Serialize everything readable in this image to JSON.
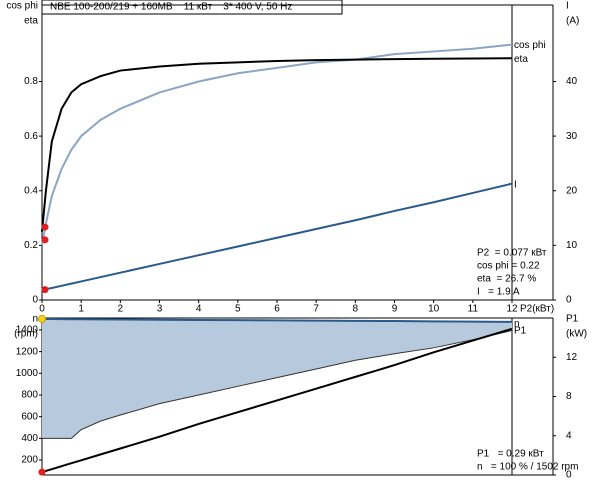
{
  "chart_data": [
    {
      "type": "line",
      "title": "NBE 100-200/219 + 160MB    11 кВт    3* 400 V, 50 Hz",
      "ylabel": [
        "cos phi",
        "eta"
      ],
      "y2label": [
        "I",
        "(A)"
      ],
      "xlabel": "P2(кВт)",
      "x": [
        0,
        0.1,
        0.25,
        0.5,
        0.75,
        1,
        1.5,
        2,
        3,
        4,
        5,
        6,
        7,
        8,
        9,
        10,
        11,
        12
      ],
      "xlim": [
        0,
        12
      ],
      "xticks": [
        0,
        1,
        2,
        3,
        4,
        5,
        6,
        7,
        8,
        9,
        10,
        11,
        12
      ],
      "ylim": [
        0,
        1.08
      ],
      "yticks": [
        0,
        0.2,
        0.4,
        0.6,
        0.8
      ],
      "y2lim": [
        0,
        54
      ],
      "y2ticks": [
        0,
        10,
        20,
        30,
        40
      ],
      "series": [
        {
          "name": "cos phi",
          "color": "#8aa6c4",
          "values": [
            0.2,
            0.28,
            0.38,
            0.48,
            0.55,
            0.6,
            0.66,
            0.7,
            0.76,
            0.8,
            0.83,
            0.85,
            0.87,
            0.88,
            0.9,
            0.91,
            0.92,
            0.935
          ]
        },
        {
          "name": "eta",
          "color": "#000000",
          "values": [
            0.25,
            0.4,
            0.58,
            0.7,
            0.76,
            0.79,
            0.82,
            0.84,
            0.855,
            0.865,
            0.87,
            0.875,
            0.878,
            0.88,
            0.882,
            0.883,
            0.884,
            0.885
          ]
        },
        {
          "name": "I",
          "color": "#2a5a8c",
          "axis": "y2",
          "values": [
            1.9,
            2.0,
            2.2,
            2.6,
            3.0,
            3.4,
            4.2,
            5.0,
            6.6,
            8.2,
            9.8,
            11.4,
            13.0,
            14.6,
            16.3,
            17.9,
            19.6,
            21.3
          ]
        }
      ],
      "operating_point": {
        "x": 0.077,
        "values": [
          0.22,
          0.267,
          1.9
        ],
        "colors": [
          "#e02020",
          "#e02020",
          "#e02020"
        ]
      },
      "info": [
        "P2  = 0.077 кВт",
        "cos phi = 0.22",
        "eta  = 26.7 %",
        "I   = 1.9 A"
      ]
    },
    {
      "type": "line",
      "ylabel": [
        "n",
        "(rpm)"
      ],
      "y2label": [
        "P1",
        "(kW)"
      ],
      "x": [
        0,
        0.1,
        0.25,
        0.5,
        0.75,
        1,
        1.5,
        2,
        3,
        4,
        5,
        6,
        7,
        8,
        9,
        10,
        11,
        12
      ],
      "xlim": [
        0,
        12
      ],
      "ylim": [
        62,
        1510
      ],
      "yticks": [
        200,
        400,
        600,
        800,
        1000,
        1200,
        1400
      ],
      "y2lim": [
        0,
        16
      ],
      "y2ticks": [
        0,
        4,
        8,
        12
      ],
      "series": [
        {
          "name": "n",
          "color": "#2a5a8c",
          "fill": "#b7c9dc",
          "values": [
            1502,
            1501,
            1501,
            1500,
            1499,
            1498,
            1497,
            1496,
            1494,
            1492,
            1490,
            1488,
            1486,
            1484,
            1482,
            1479,
            1476,
            1474
          ],
          "lower": [
            400,
            400,
            400,
            400,
            400,
            480,
            560,
            615,
            720,
            800,
            880,
            960,
            1040,
            1120,
            1180,
            1235,
            1310,
            1395
          ]
        },
        {
          "name": "P1",
          "color": "#000000",
          "axis": "y2",
          "values": [
            0.29,
            0.41,
            0.59,
            0.9,
            1.2,
            1.5,
            2.1,
            2.7,
            3.9,
            5.2,
            6.4,
            7.6,
            8.8,
            10.0,
            11.2,
            12.5,
            13.7,
            14.9
          ]
        }
      ],
      "operating_point": {
        "x": 0,
        "values": [
          1502,
          0.29
        ],
        "colors": [
          "#f5d020",
          "#e02020"
        ]
      },
      "info": [
        "P1   = 0.29 кВт",
        "n   = 100 % / 1502 rpm"
      ]
    }
  ]
}
